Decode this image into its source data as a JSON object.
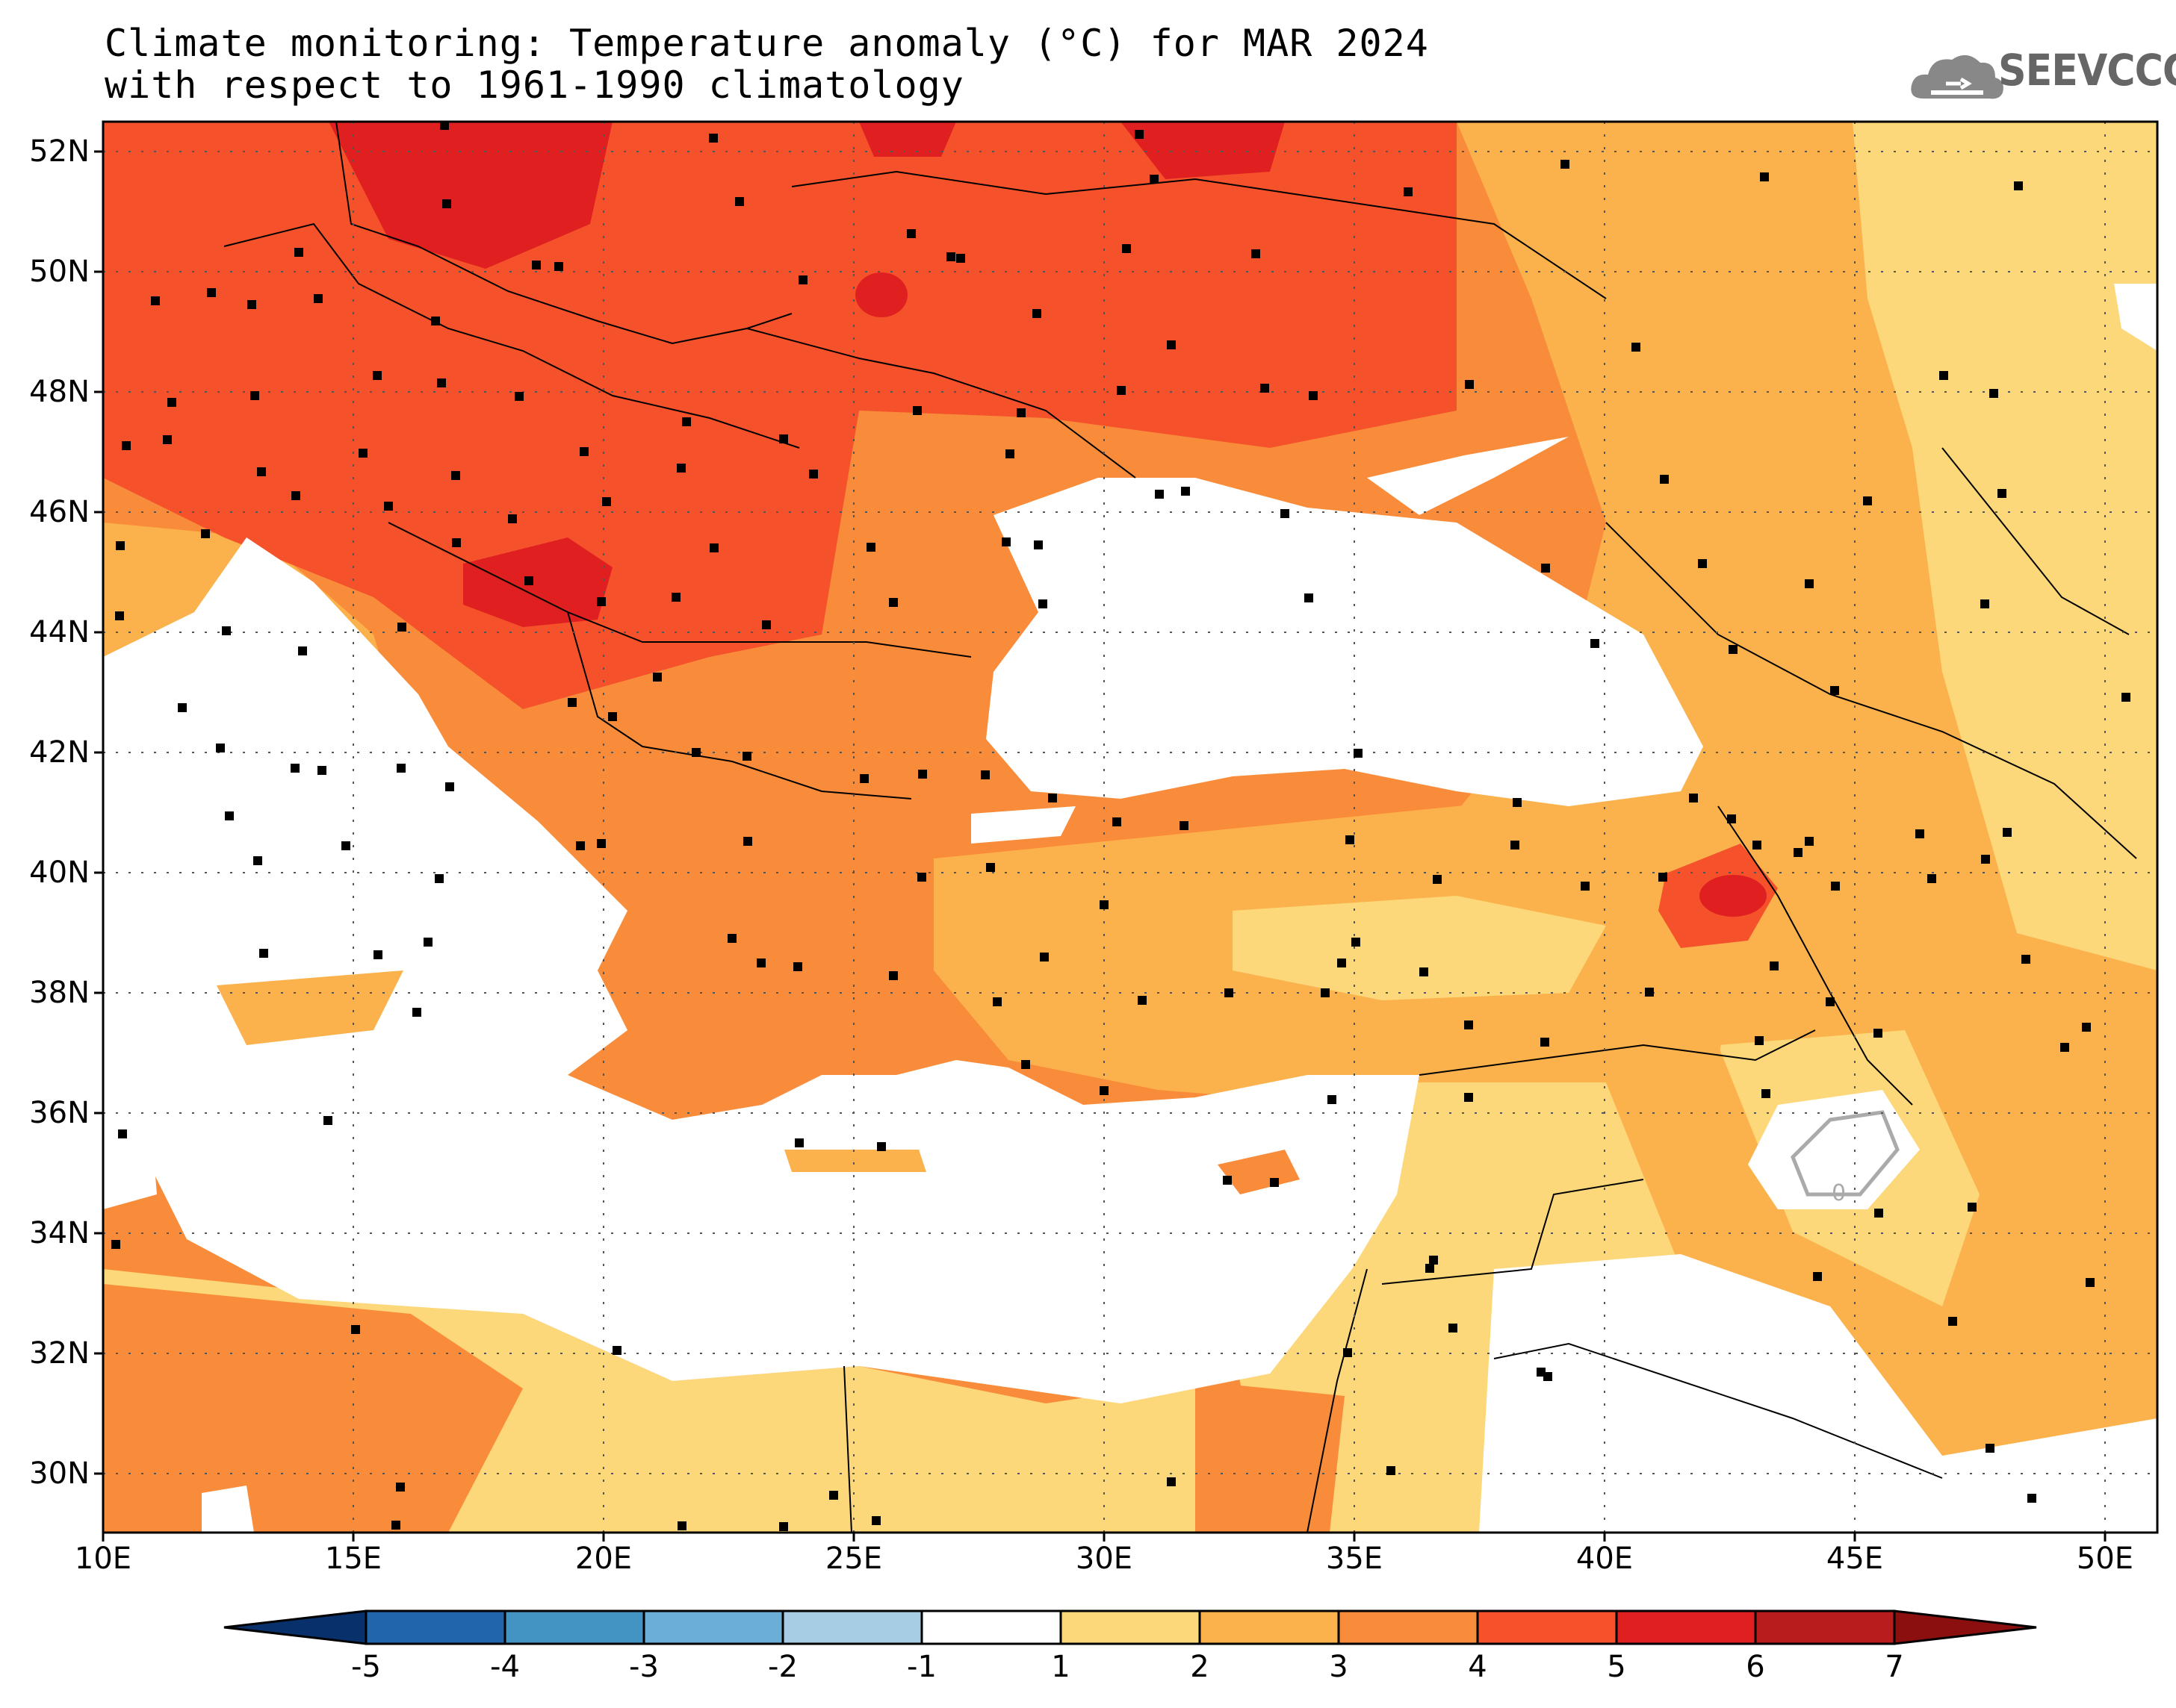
{
  "title": {
    "line1": "Climate monitoring: Temperature anomaly (°C) for MAR 2024",
    "line2": "with respect to 1961-1990 climatology"
  },
  "logo": {
    "text": "SEEVCCC",
    "icon": "cloud-logo-icon"
  },
  "map": {
    "lon_range": [
      10,
      51
    ],
    "lat_range": [
      29,
      52.5
    ],
    "lat_ticks": [
      "52N",
      "50N",
      "48N",
      "46N",
      "44N",
      "42N",
      "40N",
      "38N",
      "36N",
      "34N",
      "32N",
      "30N"
    ],
    "lon_ticks": [
      "10E",
      "15E",
      "20E",
      "25E",
      "30E",
      "35E",
      "40E",
      "45E",
      "50E"
    ],
    "contour_label": "0"
  },
  "colorbar": {
    "labels": [
      "-5",
      "-4",
      "-3",
      "-2",
      "-1",
      "1",
      "2",
      "3",
      "4",
      "5",
      "6",
      "7"
    ],
    "colors": [
      "#08306b",
      "#2166ac",
      "#4393c3",
      "#6baed6",
      "#a6cde4",
      "#ffffff",
      "#fdd87a",
      "#fbb24c",
      "#f98c3a",
      "#f5522b",
      "#e02020",
      "#b81c1c",
      "#8b0f0f"
    ]
  }
}
